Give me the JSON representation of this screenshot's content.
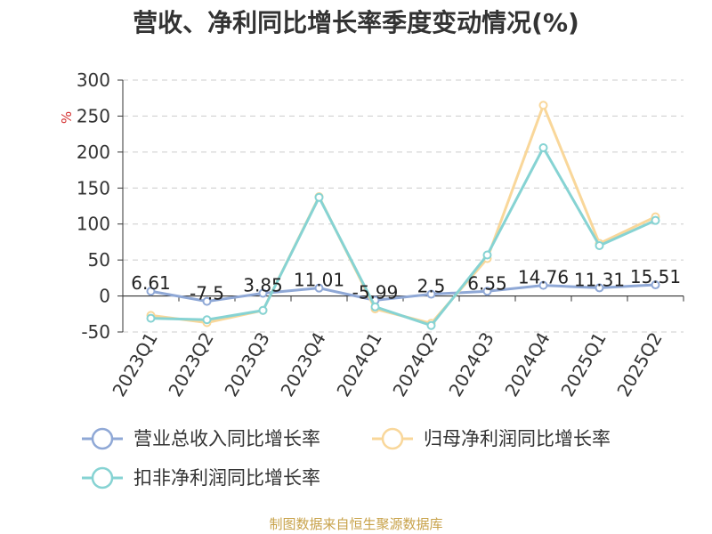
{
  "chart_data": {
    "type": "line",
    "title": "营收、净利同比增长率季度变动情况(%)",
    "ylabel": "%",
    "ylim": [
      -50,
      300
    ],
    "yticks": [
      300,
      250,
      200,
      150,
      100,
      50,
      0,
      -50
    ],
    "grid": true,
    "legend_position": "bottom",
    "categories": [
      "2023Q1",
      "2023Q2",
      "2023Q3",
      "2023Q4",
      "2024Q1",
      "2024Q2",
      "2024Q3",
      "2024Q4",
      "2025Q1",
      "2025Q2"
    ],
    "series": [
      {
        "name": "营业总收入同比增长率",
        "color": "#8fa8d6",
        "values": [
          6.61,
          -7.5,
          3.85,
          11.01,
          -5.99,
          2.5,
          6.55,
          14.76,
          11.31,
          15.51
        ],
        "labels": [
          "6.61",
          "-7.5",
          "3.85",
          "11.01",
          "-5.99",
          "2.5",
          "6.55",
          "14.76",
          "11.31",
          "15.51"
        ]
      },
      {
        "name": "归母净利润同比增长率",
        "color": "#f9d79a",
        "values": [
          -27,
          -37,
          -20,
          138,
          -18,
          -38,
          52,
          265,
          73,
          110
        ]
      },
      {
        "name": "扣非净利润同比增长率",
        "color": "#86d3d3",
        "values": [
          -31,
          -33,
          -20,
          137,
          -15,
          -41,
          57,
          206,
          70,
          105
        ]
      }
    ]
  },
  "footer": {
    "source": "制图数据来自恒生聚源数据库"
  }
}
